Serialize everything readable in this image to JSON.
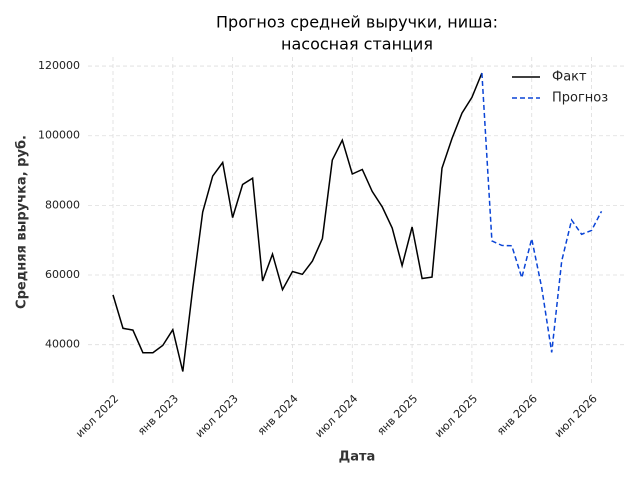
{
  "chart_data": {
    "type": "line",
    "title": [
      "Прогноз средней выручки, ниша:",
      "насосная станция"
    ],
    "x_label": "Дата",
    "y_label": "Средняя выручка, руб.",
    "x": [
      "2022-07",
      "2022-08",
      "2022-09",
      "2022-10",
      "2022-11",
      "2022-12",
      "2023-01",
      "2023-02",
      "2023-03",
      "2023-04",
      "2023-05",
      "2023-06",
      "2023-07",
      "2023-08",
      "2023-09",
      "2023-10",
      "2023-11",
      "2023-12",
      "2024-01",
      "2024-02",
      "2024-03",
      "2024-04",
      "2024-05",
      "2024-06",
      "2024-07",
      "2024-08",
      "2024-09",
      "2024-10",
      "2024-11",
      "2024-12",
      "2025-01",
      "2025-02",
      "2025-03",
      "2025-04",
      "2025-05",
      "2025-06",
      "2025-07",
      "2025-08",
      "2025-09",
      "2025-10",
      "2025-11",
      "2025-12",
      "2026-01",
      "2026-02",
      "2026-03",
      "2026-04",
      "2026-05",
      "2026-06",
      "2026-07",
      "2026-08"
    ],
    "series": [
      {
        "name": "Факт",
        "color": "#000000",
        "dash": false,
        "values": [
          54300,
          44700,
          44200,
          37700,
          37700,
          39800,
          44300,
          32300,
          56300,
          78100,
          88400,
          92300,
          76500,
          86000,
          87800,
          58300,
          66000,
          55800,
          61000,
          60200,
          64000,
          70500,
          93000,
          98700,
          89000,
          90300,
          84000,
          79600,
          73500,
          62700,
          73800,
          59000,
          59400,
          90700,
          99200,
          106500,
          111000,
          118000,
          null,
          null,
          null,
          null,
          null,
          null,
          null,
          null,
          null,
          null,
          null,
          null
        ]
      },
      {
        "name": "Прогноз",
        "color": "#0a44d6",
        "dash": true,
        "values": [
          null,
          null,
          null,
          null,
          null,
          null,
          null,
          null,
          null,
          null,
          null,
          null,
          null,
          null,
          null,
          null,
          null,
          null,
          null,
          null,
          null,
          null,
          null,
          null,
          null,
          null,
          null,
          null,
          null,
          null,
          null,
          null,
          null,
          null,
          null,
          null,
          null,
          118000,
          69800,
          68500,
          68400,
          59200,
          70400,
          56400,
          37800,
          64000,
          75800,
          71700,
          72800,
          78300
        ]
      }
    ],
    "xticks": [
      {
        "value": "2022-07",
        "label": "июл 2022"
      },
      {
        "value": "2023-01",
        "label": "янв 2023"
      },
      {
        "value": "2023-07",
        "label": "июл 2023"
      },
      {
        "value": "2024-01",
        "label": "янв 2024"
      },
      {
        "value": "2024-07",
        "label": "июл 2024"
      },
      {
        "value": "2025-01",
        "label": "янв 2025"
      },
      {
        "value": "2025-07",
        "label": "июл 2025"
      },
      {
        "value": "2026-01",
        "label": "янв 2026"
      },
      {
        "value": "2026-07",
        "label": "июл 2026"
      }
    ],
    "ylim": [
      29000,
      122600
    ],
    "yticks": [
      40000,
      60000,
      80000,
      100000,
      120000
    ],
    "grid": true,
    "legend": "upper right"
  }
}
